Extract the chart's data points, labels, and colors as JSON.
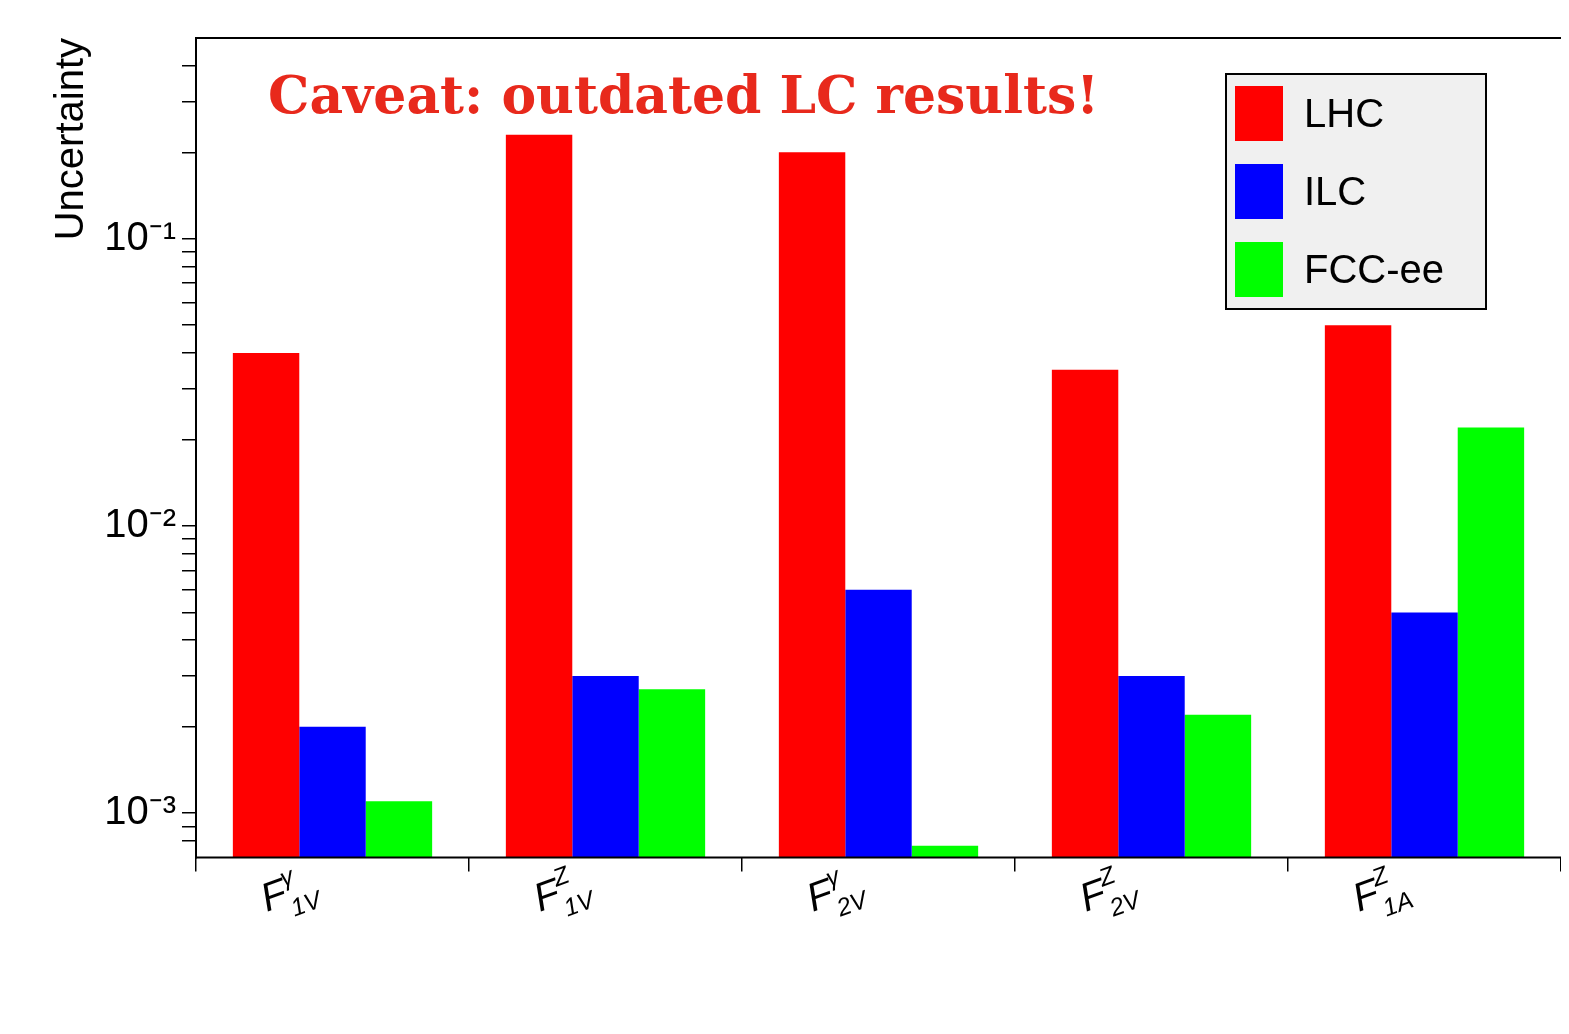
{
  "chart_data": {
    "type": "bar",
    "ylabel": "Uncertainty",
    "log": "y",
    "grid": false,
    "legend": "top right",
    "annotations": [
      "Caveat: outdated LC results!"
    ],
    "categories": [
      "F$^{γ}$$_{1V}$",
      "F$^{Z}$$_{1V}$",
      "F$^{γ}$$_{2V}$",
      "F$^{Z}$$_{2V}$",
      "F$^{Z}$$_{1A}$"
    ],
    "series": [
      {
        "name": "LHC",
        "color": "#ff0000",
        "values": [
          0.04,
          0.23,
          0.2,
          0.035,
          0.05
        ]
      },
      {
        "name": "ILC",
        "color": "#0000ff",
        "values": [
          0.002,
          0.003,
          0.006,
          0.003,
          0.005
        ]
      },
      {
        "name": "FCC-ee",
        "color": "#00ff00",
        "values": [
          0.0011,
          0.0027,
          0.00077,
          0.0022,
          0.022
        ]
      }
    ],
    "ylim": [
      0.0007,
      0.5
    ],
    "yticks": [
      {
        "value": 0.0008,
        "label": null
      },
      {
        "value": 0.0009,
        "label": null
      },
      {
        "value": 0.001,
        "label": "10⁻³"
      },
      {
        "value": 0.002,
        "label": null
      },
      {
        "value": 0.003,
        "label": null
      },
      {
        "value": 0.004,
        "label": null
      },
      {
        "value": 0.005,
        "label": null
      },
      {
        "value": 0.006,
        "label": null
      },
      {
        "value": 0.007,
        "label": null
      },
      {
        "value": 0.008,
        "label": null
      },
      {
        "value": 0.009,
        "label": null
      },
      {
        "value": 0.01,
        "label": "10⁻²"
      },
      {
        "value": 0.02,
        "label": null
      },
      {
        "value": 0.03,
        "label": null
      },
      {
        "value": 0.04,
        "label": null
      },
      {
        "value": 0.05,
        "label": null
      },
      {
        "value": 0.06,
        "label": null
      },
      {
        "value": 0.07,
        "label": null
      },
      {
        "value": 0.08,
        "label": null
      },
      {
        "value": 0.09,
        "label": null
      },
      {
        "value": 0.1,
        "label": "10⁻¹"
      },
      {
        "value": 0.2,
        "label": null
      },
      {
        "value": 0.3,
        "label": null
      },
      {
        "value": 0.4,
        "label": null
      }
    ]
  }
}
